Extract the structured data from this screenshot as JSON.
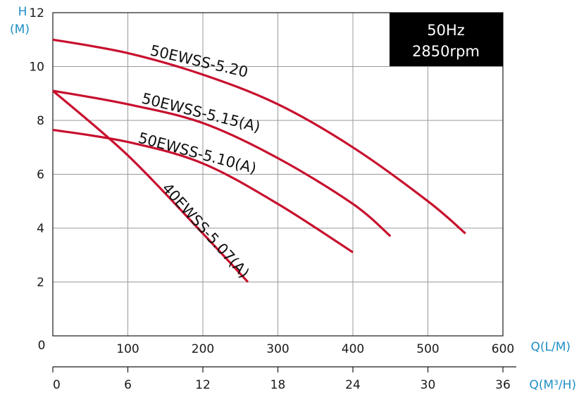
{
  "chart_data": {
    "type": "line",
    "ylabel_top": "H",
    "ylabel_unit": "(M)",
    "xlabel_primary": "Q(L/M)",
    "xlabel_secondary": "Q(M³/H)",
    "xlim": [
      0,
      600
    ],
    "ylim": [
      0,
      12
    ],
    "secondary_xlim": [
      0,
      36
    ],
    "x_ticks": [
      0,
      100,
      200,
      300,
      400,
      500,
      600
    ],
    "y_ticks": [
      2,
      4,
      6,
      8,
      10,
      12
    ],
    "y_zero_label": "0",
    "secondary_x_ticks": [
      0,
      6,
      12,
      18,
      24,
      30,
      36
    ],
    "grid": true,
    "info_box": {
      "line1": "50Hz",
      "line2": "2850rpm"
    },
    "series": [
      {
        "name": "50EWSS-5.20",
        "x": [
          0,
          100,
          200,
          300,
          400,
          500,
          550
        ],
        "y": [
          11.0,
          10.5,
          9.7,
          8.6,
          7.0,
          5.0,
          3.8
        ]
      },
      {
        "name": "50EWSS-5.15(A)",
        "x": [
          0,
          100,
          200,
          300,
          400,
          450
        ],
        "y": [
          9.1,
          8.6,
          7.9,
          6.6,
          4.9,
          3.7
        ]
      },
      {
        "name": "50EWSS-5.10(A)",
        "x": [
          0,
          100,
          200,
          300,
          400
        ],
        "y": [
          7.65,
          7.2,
          6.4,
          4.9,
          3.1
        ]
      },
      {
        "name": "40EWSS-5.07(A)",
        "x": [
          0,
          100,
          200,
          260
        ],
        "y": [
          9.1,
          6.7,
          3.8,
          2.0
        ]
      }
    ]
  }
}
